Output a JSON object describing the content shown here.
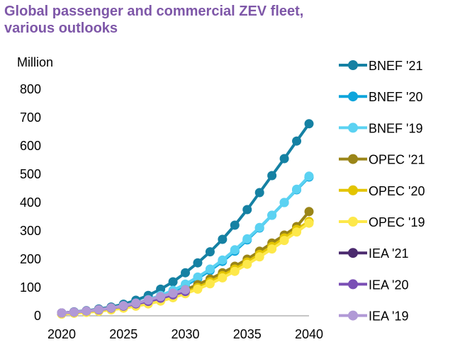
{
  "chart_data": {
    "type": "line",
    "title_line1": "Global passenger and commercial ZEV fleet,",
    "title_line2": "various outlooks",
    "ylabel": "Million",
    "xlabel": "",
    "xlim": [
      2020,
      2040
    ],
    "ylim": [
      0,
      800
    ],
    "x_ticks": [
      "2020",
      "2025",
      "2030",
      "2035",
      "2040"
    ],
    "y_ticks": [
      "0",
      "100",
      "200",
      "300",
      "400",
      "500",
      "600",
      "700",
      "800"
    ],
    "legend_position": "right",
    "grid": false,
    "series": [
      {
        "name": "BNEF '21",
        "color": "#1581a3",
        "x": [
          2020,
          2021,
          2022,
          2023,
          2024,
          2025,
          2026,
          2027,
          2028,
          2029,
          2030,
          2031,
          2032,
          2033,
          2034,
          2035,
          2036,
          2037,
          2038,
          2039,
          2040
        ],
        "y": [
          10,
          14,
          18,
          24,
          31,
          41,
          55,
          72,
          94,
          120,
          152,
          187,
          226,
          270,
          320,
          375,
          435,
          495,
          555,
          617,
          678
        ]
      },
      {
        "name": "BNEF '20",
        "color": "#0ea5dc",
        "x": [
          2020,
          2021,
          2022,
          2023,
          2024,
          2025,
          2026,
          2027,
          2028,
          2029,
          2030,
          2031,
          2032,
          2033,
          2034,
          2035,
          2036,
          2037,
          2038,
          2039,
          2040
        ],
        "y": [
          8,
          11,
          15,
          20,
          26,
          33,
          42,
          53,
          68,
          86,
          107,
          132,
          160,
          192,
          228,
          268,
          310,
          355,
          400,
          445,
          490
        ]
      },
      {
        "name": "BNEF '19",
        "color": "#5bd2f2",
        "x": [
          2020,
          2021,
          2022,
          2023,
          2024,
          2025,
          2026,
          2027,
          2028,
          2029,
          2030,
          2031,
          2032,
          2033,
          2034,
          2035,
          2036,
          2037,
          2038,
          2039,
          2040
        ],
        "y": [
          8,
          11,
          15,
          20,
          27,
          35,
          45,
          57,
          72,
          90,
          112,
          137,
          165,
          197,
          233,
          272,
          312,
          355,
          400,
          447,
          493
        ]
      },
      {
        "name": "OPEC '21",
        "color": "#9a8518",
        "x": [
          2020,
          2021,
          2022,
          2023,
          2024,
          2025,
          2026,
          2027,
          2028,
          2029,
          2030,
          2031,
          2032,
          2033,
          2034,
          2035,
          2036,
          2037,
          2038,
          2039,
          2040
        ],
        "y": [
          8,
          11,
          14,
          19,
          25,
          32,
          40,
          50,
          62,
          76,
          92,
          110,
          130,
          152,
          175,
          200,
          228,
          257,
          285,
          315,
          368
        ]
      },
      {
        "name": "OPEC '20",
        "color": "#e3c400",
        "x": [
          2020,
          2021,
          2022,
          2023,
          2024,
          2025,
          2026,
          2027,
          2028,
          2029,
          2030,
          2031,
          2032,
          2033,
          2034,
          2035,
          2036,
          2037,
          2038,
          2039,
          2040
        ],
        "y": [
          7,
          10,
          13,
          17,
          22,
          28,
          35,
          44,
          55,
          68,
          83,
          100,
          120,
          142,
          165,
          190,
          217,
          245,
          275,
          305,
          333
        ]
      },
      {
        "name": "OPEC '19",
        "color": "#fde84a",
        "x": [
          2020,
          2021,
          2022,
          2023,
          2024,
          2025,
          2026,
          2027,
          2028,
          2029,
          2030,
          2031,
          2032,
          2033,
          2034,
          2035,
          2036,
          2037,
          2038,
          2039,
          2040
        ],
        "y": [
          6,
          9,
          12,
          16,
          21,
          27,
          34,
          42,
          52,
          64,
          78,
          94,
          113,
          134,
          157,
          182,
          208,
          236,
          266,
          296,
          327
        ]
      },
      {
        "name": "IEA '21",
        "color": "#4b2a6e",
        "x": [
          2020,
          2021,
          2022,
          2023,
          2024,
          2025,
          2026,
          2027,
          2028,
          2029,
          2030
        ],
        "y": [
          10,
          13,
          17,
          22,
          28,
          35,
          44,
          54,
          65,
          76,
          88
        ]
      },
      {
        "name": "IEA '20",
        "color": "#7a4fb5",
        "x": [
          2020,
          2021,
          2022,
          2023,
          2024,
          2025,
          2026,
          2027,
          2028,
          2029,
          2030
        ],
        "y": [
          10,
          13,
          17,
          21,
          27,
          34,
          42,
          51,
          62,
          74,
          86
        ]
      },
      {
        "name": "IEA '19",
        "color": "#b199d6",
        "x": [
          2020,
          2021,
          2022,
          2023,
          2024,
          2025,
          2026,
          2027,
          2028,
          2029,
          2030
        ],
        "y": [
          10,
          13,
          17,
          22,
          28,
          36,
          45,
          56,
          68,
          80,
          92
        ]
      }
    ]
  }
}
